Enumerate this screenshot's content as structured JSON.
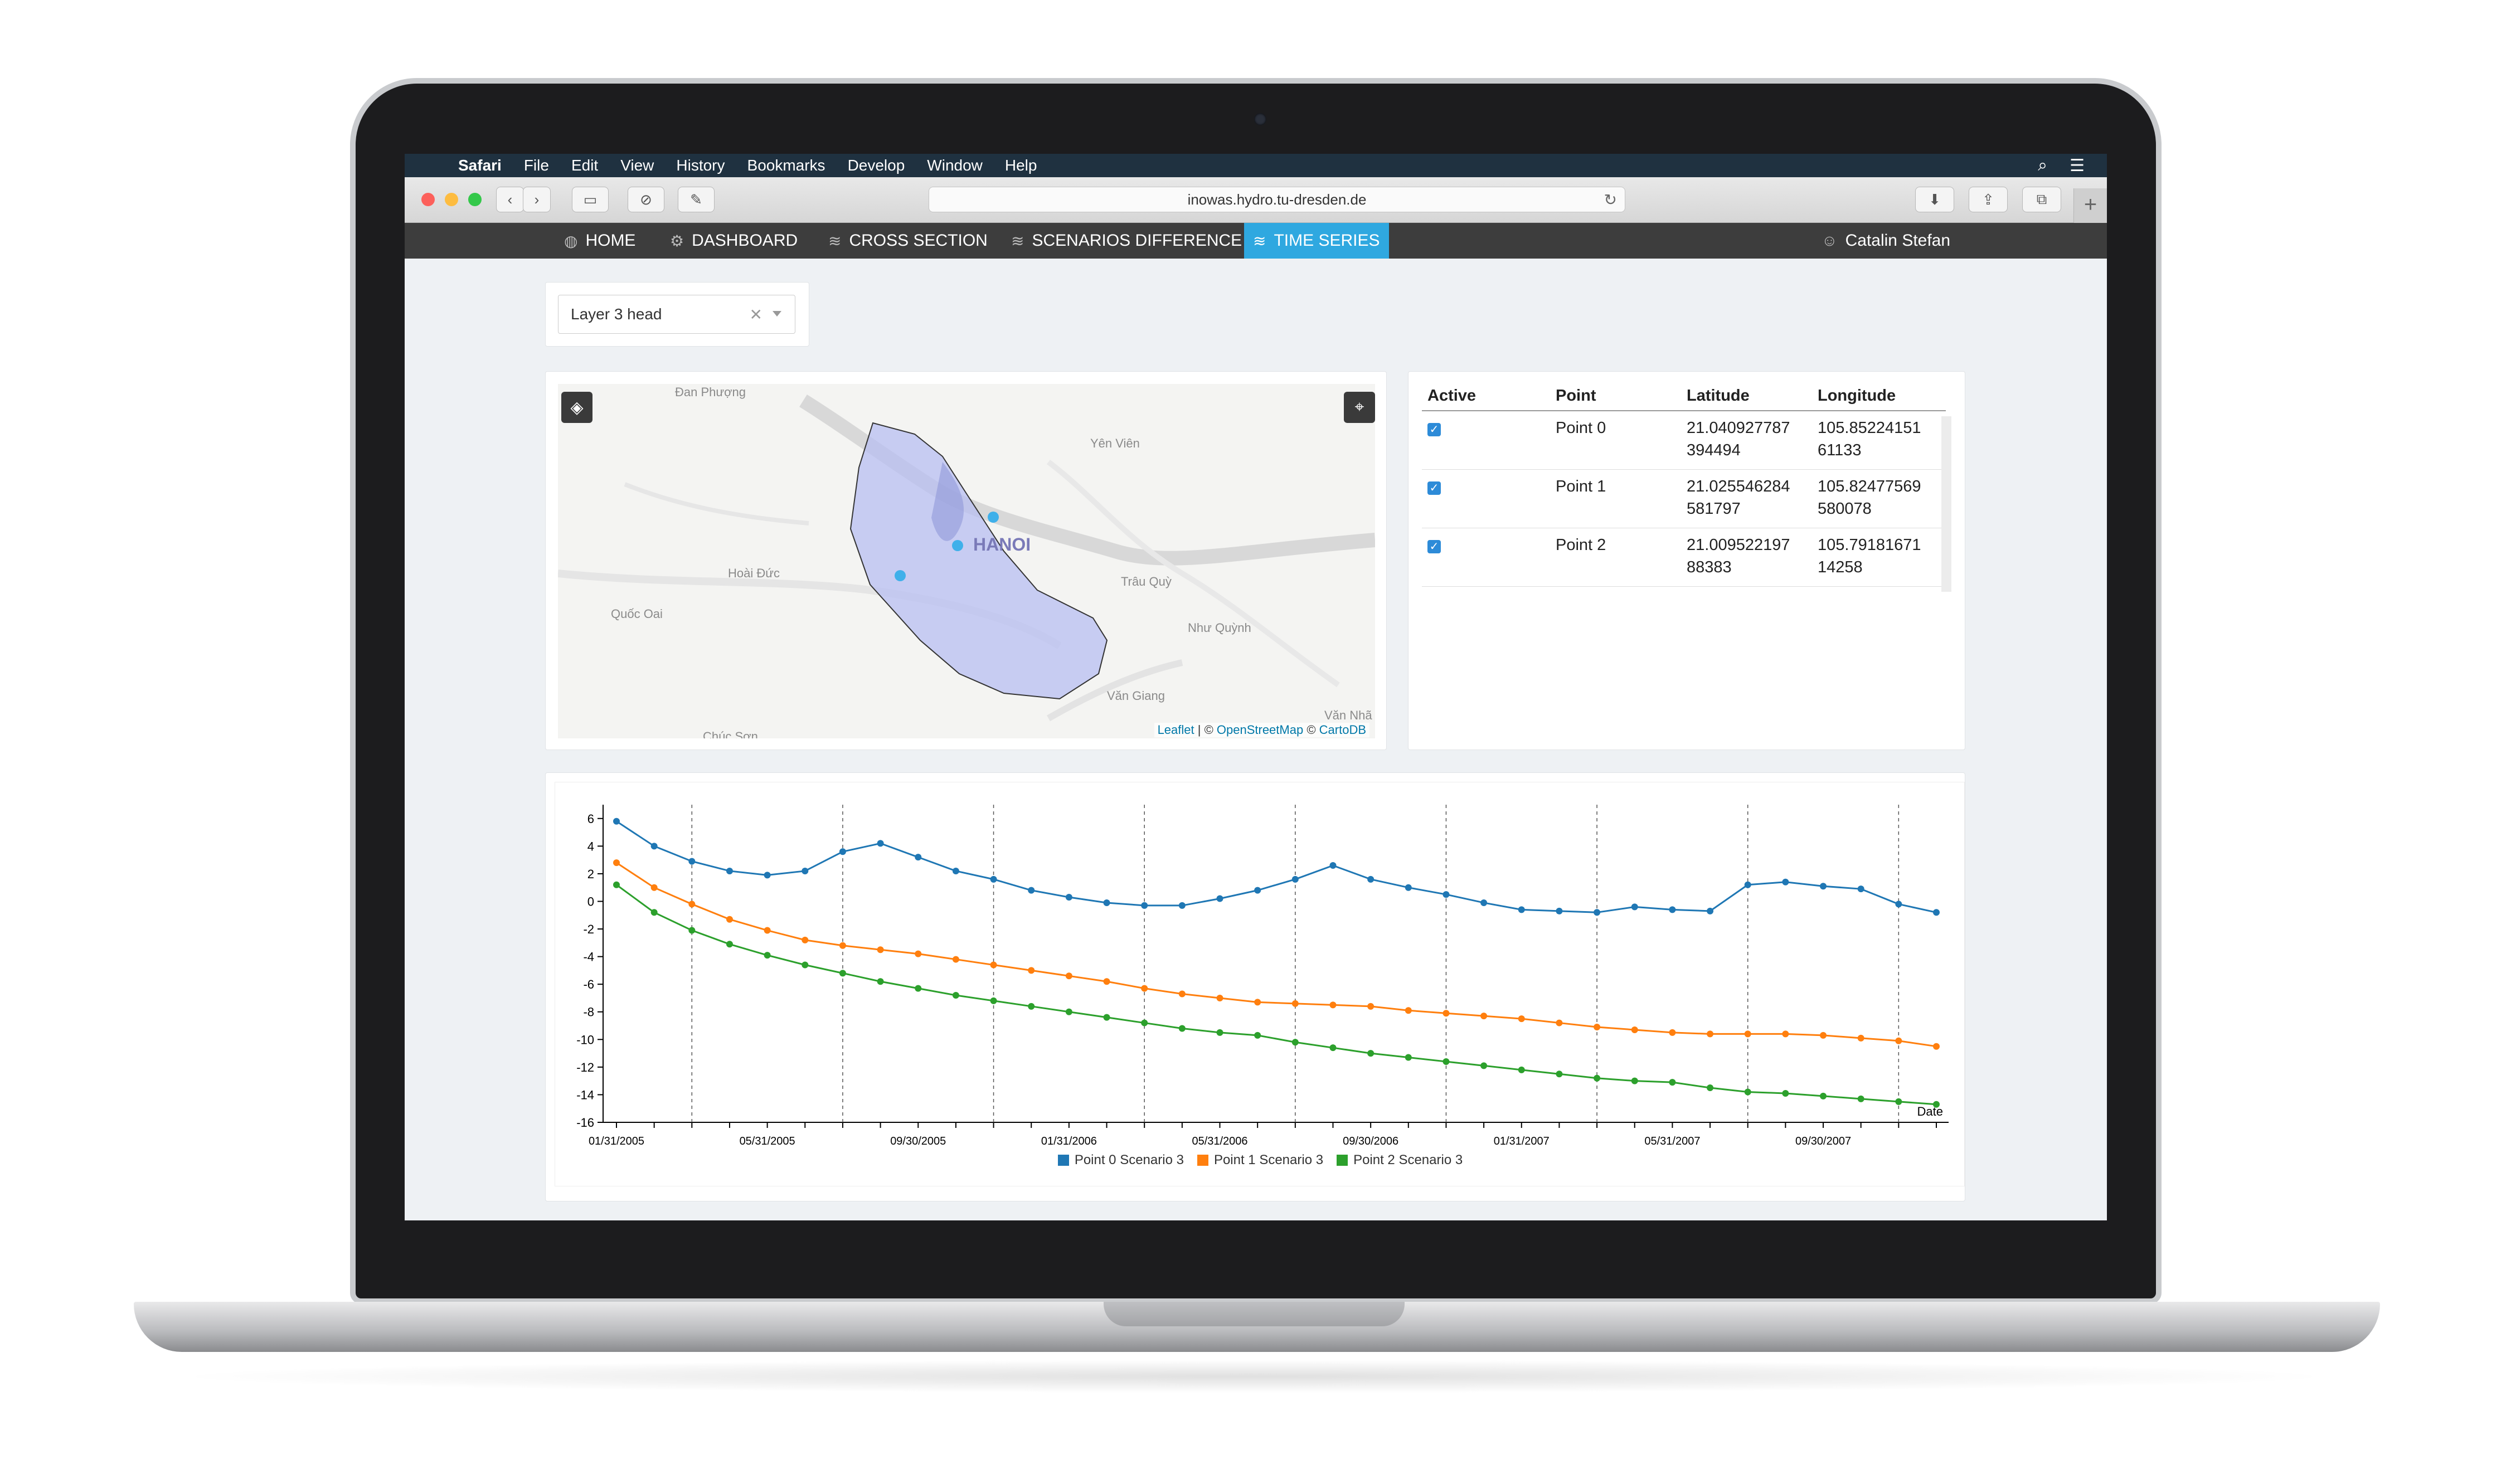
{
  "menubar": {
    "items": [
      "Safari",
      "File",
      "Edit",
      "View",
      "History",
      "Bookmarks",
      "Develop",
      "Window",
      "Help"
    ]
  },
  "browser": {
    "url": "inowas.hydro.tu-dresden.de"
  },
  "nav": {
    "items": [
      {
        "label": "HOME",
        "icon": "globe-icon"
      },
      {
        "label": "DASHBOARD",
        "icon": "gear-icon"
      },
      {
        "label": "CROSS SECTION",
        "icon": "layers-icon"
      },
      {
        "label": "SCENARIOS DIFFERENCE",
        "icon": "layers-icon"
      },
      {
        "label": "TIME SERIES",
        "icon": "layers-icon"
      }
    ],
    "active": "TIME SERIES",
    "user": "Catalin Stefan"
  },
  "layer_select": {
    "value": "Layer 3 head"
  },
  "map": {
    "labels": [
      "Đan Phượng",
      "Yên Viên",
      "HANOI",
      "Hoài Đức",
      "Trâu Quỳ",
      "Quốc Oai",
      "Như Quỳnh",
      "Văn Giang",
      "Văn Nhã",
      "Chúc Sơn"
    ],
    "attribution": {
      "leaflet": "Leaflet",
      "sep1": " | © ",
      "osm": "OpenStreetMap",
      "sep2": " © ",
      "carto": "CartoDB"
    }
  },
  "points_table": {
    "headers": [
      "Active",
      "Point",
      "Latitude",
      "Longitude"
    ],
    "rows": [
      {
        "active": true,
        "point": "Point 0",
        "lat": "21.040927787\n394494",
        "lon": "105.85224151\n61133"
      },
      {
        "active": true,
        "point": "Point 1",
        "lat": "21.025546284\n581797",
        "lon": "105.82477569\n580078"
      },
      {
        "active": true,
        "point": "Point 2",
        "lat": "21.009522197\n88383",
        "lon": "105.79181671\n14258"
      }
    ]
  },
  "chart_data": {
    "type": "line",
    "xlabel": "Date",
    "ylabel": "",
    "ylim": [
      -16,
      7
    ],
    "yticks": [
      6,
      4,
      2,
      0,
      -2,
      -4,
      -6,
      -8,
      -10,
      -12,
      -14,
      -16
    ],
    "xtick_labels": [
      "01/31/2005",
      "05/31/2005",
      "09/30/2005",
      "01/31/2006",
      "05/31/2006",
      "09/30/2006",
      "01/31/2007",
      "05/31/2007",
      "09/30/2007"
    ],
    "x_count": 36,
    "series": [
      {
        "name": "Point 0 Scenario 3",
        "color": "#1f77b4",
        "values": [
          5.8,
          4.0,
          2.9,
          2.2,
          1.9,
          2.2,
          3.6,
          4.2,
          3.2,
          2.2,
          1.6,
          0.8,
          0.3,
          -0.1,
          -0.3,
          -0.3,
          0.2,
          0.8,
          1.6,
          2.6,
          1.6,
          1.0,
          0.5,
          -0.1,
          -0.6,
          -0.7,
          -0.8,
          -0.4,
          -0.6,
          -0.7,
          1.2,
          1.4,
          1.1,
          0.9,
          -0.2,
          -0.8
        ]
      },
      {
        "name": "Point 1 Scenario 3",
        "color": "#ff7f0e",
        "values": [
          2.8,
          1.0,
          -0.2,
          -1.3,
          -2.1,
          -2.8,
          -3.2,
          -3.5,
          -3.8,
          -4.2,
          -4.6,
          -5.0,
          -5.4,
          -5.8,
          -6.3,
          -6.7,
          -7.0,
          -7.3,
          -7.4,
          -7.5,
          -7.6,
          -7.9,
          -8.1,
          -8.3,
          -8.5,
          -8.8,
          -9.1,
          -9.3,
          -9.5,
          -9.6,
          -9.6,
          -9.6,
          -9.7,
          -9.9,
          -10.1,
          -10.5
        ]
      },
      {
        "name": "Point 2 Scenario 3",
        "color": "#2ca02c",
        "values": [
          1.2,
          -0.8,
          -2.1,
          -3.1,
          -3.9,
          -4.6,
          -5.2,
          -5.8,
          -6.3,
          -6.8,
          -7.2,
          -7.6,
          -8.0,
          -8.4,
          -8.8,
          -9.2,
          -9.5,
          -9.7,
          -10.2,
          -10.6,
          -11.0,
          -11.3,
          -11.6,
          -11.9,
          -12.2,
          -12.5,
          -12.8,
          -13.0,
          -13.1,
          -13.5,
          -13.8,
          -13.9,
          -14.1,
          -14.3,
          -14.5,
          -14.7
        ]
      }
    ]
  }
}
